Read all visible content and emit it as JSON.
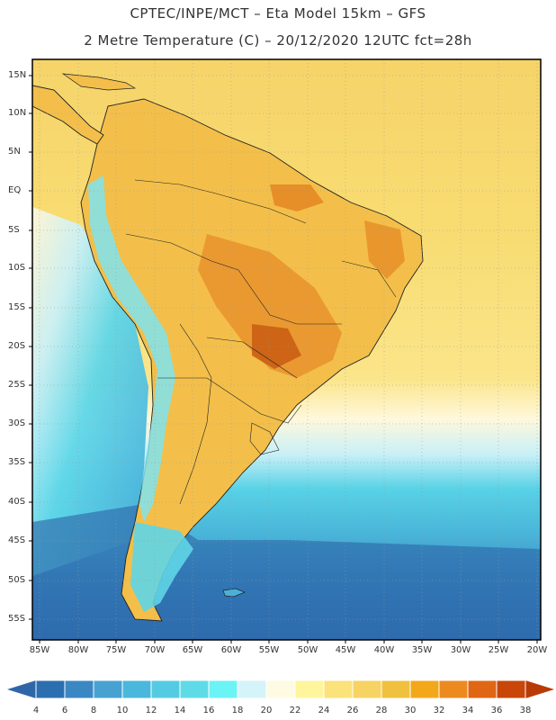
{
  "header": {
    "line1": "CPTEC/INPE/MCT –  Eta Model 15km – GFS",
    "line2": "2 Metre Temperature (C) – 20/12/2020 12UTC fct=28h"
  },
  "map": {
    "region": "South America",
    "lat_labels": [
      "15N",
      "10N",
      "5N",
      "EQ",
      "5S",
      "10S",
      "15S",
      "20S",
      "25S",
      "30S",
      "35S",
      "40S",
      "45S",
      "50S",
      "55S"
    ],
    "lon_labels": [
      "85W",
      "80W",
      "75W",
      "70W",
      "65W",
      "60W",
      "55W",
      "50W",
      "45W",
      "40W",
      "35W",
      "30W",
      "25W",
      "20W"
    ]
  },
  "colorbar": {
    "ticks": [
      "4",
      "6",
      "8",
      "10",
      "12",
      "14",
      "16",
      "18",
      "20",
      "22",
      "24",
      "26",
      "28",
      "30",
      "32",
      "34",
      "36",
      "38"
    ],
    "colors": [
      "#2b6fb0",
      "#3b87c4",
      "#47a2d2",
      "#4ab8dc",
      "#55cbe3",
      "#5fdbe8",
      "#6cf3f6",
      "#d5f4fa",
      "#fffbe3",
      "#fff59d",
      "#fbe27a",
      "#f7d363",
      "#f0c13f",
      "#f3a81c",
      "#ec8a20",
      "#e06614",
      "#c84608"
    ],
    "under_color": "#2f66a8",
    "over_color": "#b83a06"
  }
}
